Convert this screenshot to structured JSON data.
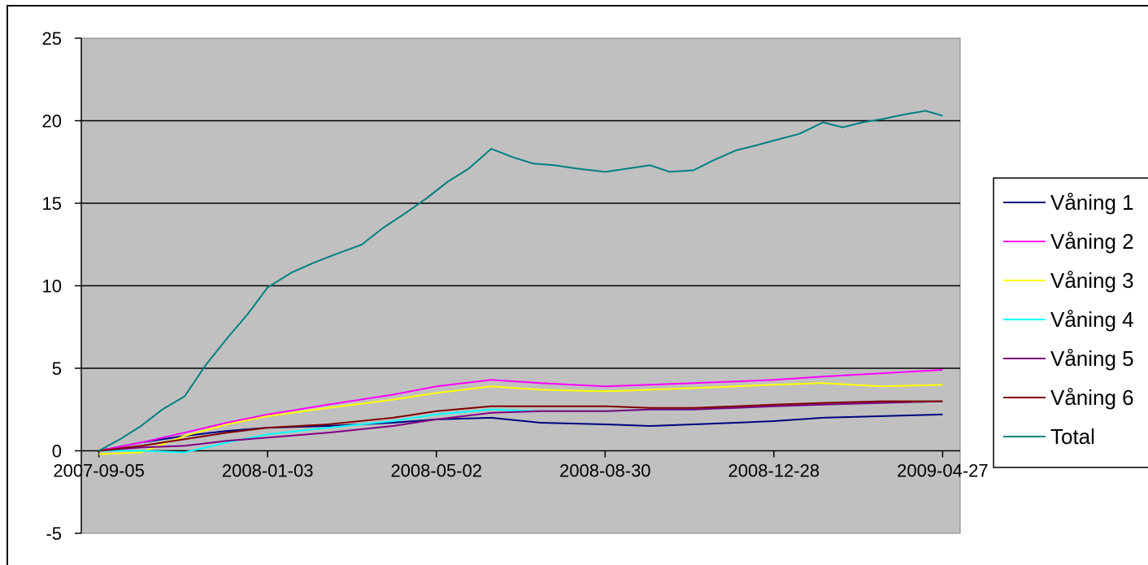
{
  "chart_data": {
    "type": "line",
    "x_axis": {
      "type": "date",
      "range": [
        "2007-09-05",
        "2009-04-27"
      ],
      "ticks": [
        "2007-09-05",
        "2008-01-03",
        "2008-05-02",
        "2008-08-30",
        "2008-12-28",
        "2009-04-27"
      ]
    },
    "y_axis": {
      "range": [
        -5,
        25
      ],
      "ticks": [
        -5,
        0,
        5,
        10,
        15,
        20,
        25
      ],
      "gridlines": true
    },
    "plot_background": "#c0c0c0",
    "legend": {
      "position": "right",
      "entries": [
        "Våning 1",
        "Våning 2",
        "Våning 3",
        "Våning 4",
        "Våning 5",
        "Våning 6",
        "Total"
      ]
    },
    "series": [
      {
        "name": "Våning 1",
        "color": "#000080",
        "x": [
          "2007-09-05",
          "2007-10-05",
          "2007-11-05",
          "2007-12-05",
          "2008-01-03",
          "2008-02-15",
          "2008-04-01",
          "2008-05-02",
          "2008-06-10",
          "2008-07-15",
          "2008-08-30",
          "2008-10-01",
          "2008-11-01",
          "2008-12-01",
          "2008-12-28",
          "2009-02-01",
          "2009-03-15",
          "2009-04-27"
        ],
        "y": [
          0,
          0.5,
          0.9,
          1.2,
          1.4,
          1.5,
          1.7,
          1.9,
          2.0,
          1.7,
          1.6,
          1.5,
          1.6,
          1.7,
          1.8,
          2.0,
          2.1,
          2.2
        ]
      },
      {
        "name": "Våning 2",
        "color": "#ff00ff",
        "x": [
          "2007-09-05",
          "2007-10-05",
          "2007-11-05",
          "2007-12-05",
          "2008-01-03",
          "2008-02-15",
          "2008-04-01",
          "2008-05-02",
          "2008-06-10",
          "2008-07-15",
          "2008-08-30",
          "2008-10-01",
          "2008-11-01",
          "2008-12-01",
          "2008-12-28",
          "2009-02-01",
          "2009-03-15",
          "2009-04-27"
        ],
        "y": [
          0,
          0.5,
          1.1,
          1.7,
          2.2,
          2.8,
          3.4,
          3.9,
          4.3,
          4.1,
          3.9,
          4.0,
          4.1,
          4.2,
          4.3,
          4.5,
          4.7,
          4.9
        ]
      },
      {
        "name": "Våning 3",
        "color": "#ffff00",
        "x": [
          "2007-09-05",
          "2007-10-05",
          "2007-11-05",
          "2007-12-05",
          "2008-01-03",
          "2008-02-15",
          "2008-04-01",
          "2008-05-02",
          "2008-06-10",
          "2008-07-15",
          "2008-08-30",
          "2008-10-01",
          "2008-11-01",
          "2008-12-01",
          "2008-12-28",
          "2009-02-01",
          "2009-03-15",
          "2009-04-27"
        ],
        "y": [
          -0.2,
          -0.1,
          0.9,
          1.6,
          2.1,
          2.6,
          3.1,
          3.5,
          3.9,
          3.7,
          3.6,
          3.7,
          3.8,
          3.9,
          4.0,
          4.1,
          3.9,
          4.0
        ]
      },
      {
        "name": "Våning 4",
        "color": "#00ffff",
        "x": [
          "2007-09-05",
          "2007-10-05",
          "2007-11-05",
          "2007-12-05",
          "2008-01-03",
          "2008-02-15",
          "2008-04-01",
          "2008-05-02",
          "2008-06-10",
          "2008-07-15",
          "2008-08-30",
          "2008-10-01",
          "2008-11-01",
          "2008-12-01",
          "2008-12-28",
          "2009-02-01",
          "2009-03-15",
          "2009-04-27"
        ],
        "y": [
          0,
          0,
          -0.1,
          0.5,
          1.0,
          1.4,
          1.8,
          2.2,
          2.5,
          2.4,
          2.4,
          2.5,
          2.5,
          2.6,
          2.7,
          2.8,
          2.9,
          3.0
        ]
      },
      {
        "name": "Våning 5",
        "color": "#800080",
        "x": [
          "2007-09-05",
          "2007-10-05",
          "2007-11-05",
          "2007-12-05",
          "2008-01-03",
          "2008-02-15",
          "2008-04-01",
          "2008-05-02",
          "2008-06-10",
          "2008-07-15",
          "2008-08-30",
          "2008-10-01",
          "2008-11-01",
          "2008-12-01",
          "2008-12-28",
          "2009-02-01",
          "2009-03-15",
          "2009-04-27"
        ],
        "y": [
          0,
          0.2,
          0.3,
          0.6,
          0.8,
          1.1,
          1.5,
          1.9,
          2.3,
          2.4,
          2.4,
          2.5,
          2.5,
          2.6,
          2.7,
          2.8,
          2.9,
          3.0
        ]
      },
      {
        "name": "Våning 6",
        "color": "#800000",
        "x": [
          "2007-09-05",
          "2007-10-05",
          "2007-11-05",
          "2007-12-05",
          "2008-01-03",
          "2008-02-15",
          "2008-04-01",
          "2008-05-02",
          "2008-06-10",
          "2008-07-15",
          "2008-08-30",
          "2008-10-01",
          "2008-11-01",
          "2008-12-01",
          "2008-12-28",
          "2009-02-01",
          "2009-03-15",
          "2009-04-27"
        ],
        "y": [
          0,
          0.3,
          0.7,
          1.1,
          1.4,
          1.6,
          2.0,
          2.4,
          2.7,
          2.7,
          2.7,
          2.6,
          2.6,
          2.7,
          2.8,
          2.9,
          3.0,
          3.0
        ]
      },
      {
        "name": "Total",
        "color": "#008080",
        "x": [
          "2007-09-05",
          "2007-09-20",
          "2007-10-05",
          "2007-10-20",
          "2007-11-05",
          "2007-11-20",
          "2007-12-05",
          "2007-12-20",
          "2008-01-03",
          "2008-01-20",
          "2008-02-05",
          "2008-02-20",
          "2008-03-10",
          "2008-03-25",
          "2008-04-10",
          "2008-04-25",
          "2008-05-10",
          "2008-05-25",
          "2008-06-10",
          "2008-06-25",
          "2008-07-10",
          "2008-07-25",
          "2008-08-10",
          "2008-08-30",
          "2008-09-15",
          "2008-10-01",
          "2008-10-15",
          "2008-11-01",
          "2008-11-15",
          "2008-12-01",
          "2008-12-15",
          "2008-12-28",
          "2009-01-15",
          "2009-02-01",
          "2009-02-15",
          "2009-03-01",
          "2009-03-15",
          "2009-04-01",
          "2009-04-15",
          "2009-04-27"
        ],
        "y": [
          0,
          0.7,
          1.5,
          2.5,
          3.3,
          5.2,
          6.8,
          8.3,
          9.9,
          10.8,
          11.4,
          11.9,
          12.5,
          13.5,
          14.4,
          15.3,
          16.3,
          17.1,
          18.3,
          17.8,
          17.4,
          17.3,
          17.1,
          16.9,
          17.1,
          17.3,
          16.9,
          17.0,
          17.6,
          18.2,
          18.5,
          18.8,
          19.2,
          19.9,
          19.6,
          19.9,
          20.1,
          20.4,
          20.6,
          20.3
        ]
      }
    ]
  }
}
